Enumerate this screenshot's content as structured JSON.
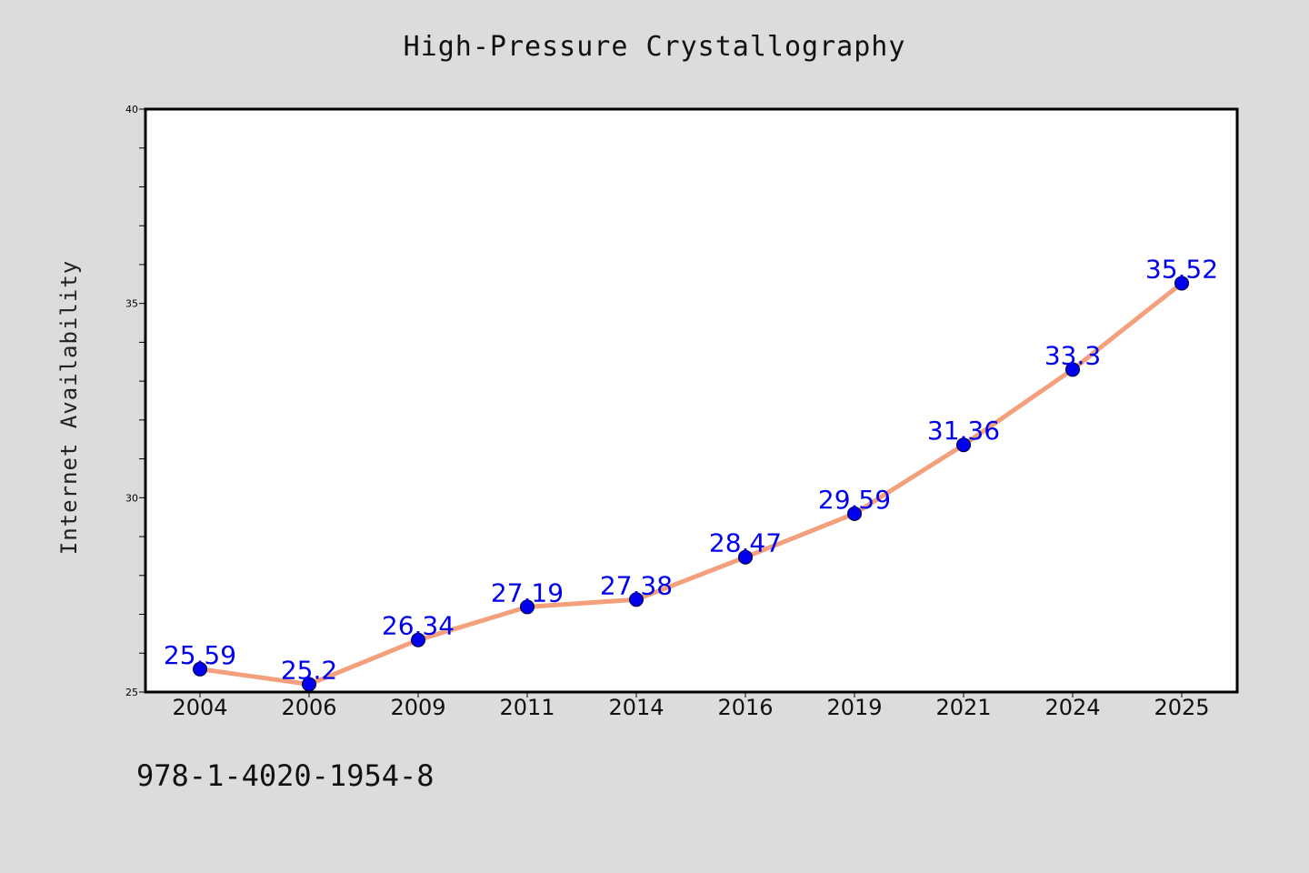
{
  "chart_data": {
    "type": "line",
    "title": "High-Pressure Crystallography",
    "xlabel": "",
    "ylabel": "Internet Availability",
    "categories": [
      "2004",
      "2006",
      "2009",
      "2011",
      "2014",
      "2016",
      "2019",
      "2021",
      "2024",
      "2025"
    ],
    "series": [
      {
        "values": [
          25.59,
          25.2,
          26.34,
          27.19,
          27.38,
          28.47,
          29.59,
          31.36,
          33.3,
          35.52
        ],
        "line_color": "#f4a07c",
        "marker_color": "#0000ee",
        "label_color": "#0000ee"
      }
    ],
    "ylim": [
      25,
      40
    ],
    "yticks_labeled": [
      25,
      30,
      35,
      40
    ],
    "ytick_minor_step": 1,
    "grid": false,
    "legend": "none",
    "data_labels": true
  },
  "footer": {
    "code": "978-1-4020-1954-8"
  },
  "colors": {
    "background": "#dcdcdc",
    "plot_background": "#ffffff",
    "axis": "#000000"
  }
}
